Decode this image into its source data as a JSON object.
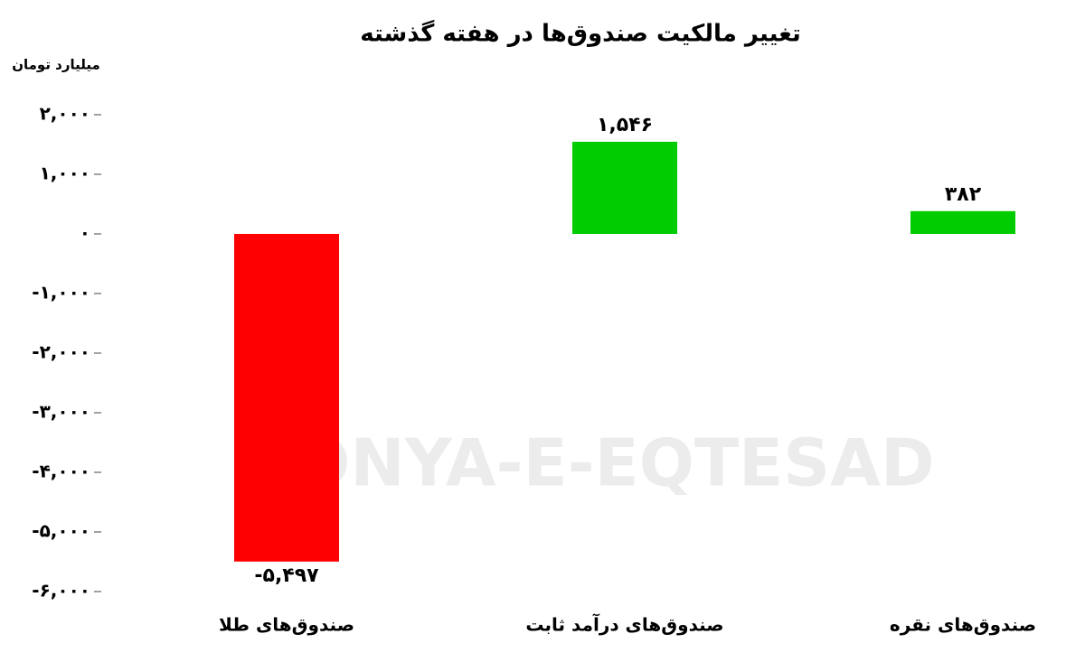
{
  "chart_data": {
    "type": "bar",
    "title": "تغییر مالکیت صندوق‌ها در هفته گذشته",
    "y_axis_label": "میلیارد تومان",
    "watermark": "DONYA-E-EQTESAD",
    "categories": [
      "صندوق‌های طلا",
      "صندوق‌های درآمد ثابت",
      "صندوق‌های نقره"
    ],
    "values": [
      -5497,
      1546,
      382
    ],
    "value_labels": [
      "-۵,۴۹۷",
      "۱,۵۴۶",
      "۳۸۲"
    ],
    "colors": [
      "#ff0000",
      "#00cc00",
      "#00cc00"
    ],
    "ylim": [
      -6000,
      2000
    ],
    "yticks": [
      {
        "value": 2000,
        "label": "۲,۰۰۰"
      },
      {
        "value": 1000,
        "label": "۱,۰۰۰"
      },
      {
        "value": 0,
        "label": "۰"
      },
      {
        "value": -1000,
        "label": "-۱,۰۰۰"
      },
      {
        "value": -2000,
        "label": "-۲,۰۰۰"
      },
      {
        "value": -3000,
        "label": "-۳,۰۰۰"
      },
      {
        "value": -4000,
        "label": "-۴,۰۰۰"
      },
      {
        "value": -5000,
        "label": "-۵,۰۰۰"
      },
      {
        "value": -6000,
        "label": "-۶,۰۰۰"
      }
    ],
    "grid": false
  }
}
